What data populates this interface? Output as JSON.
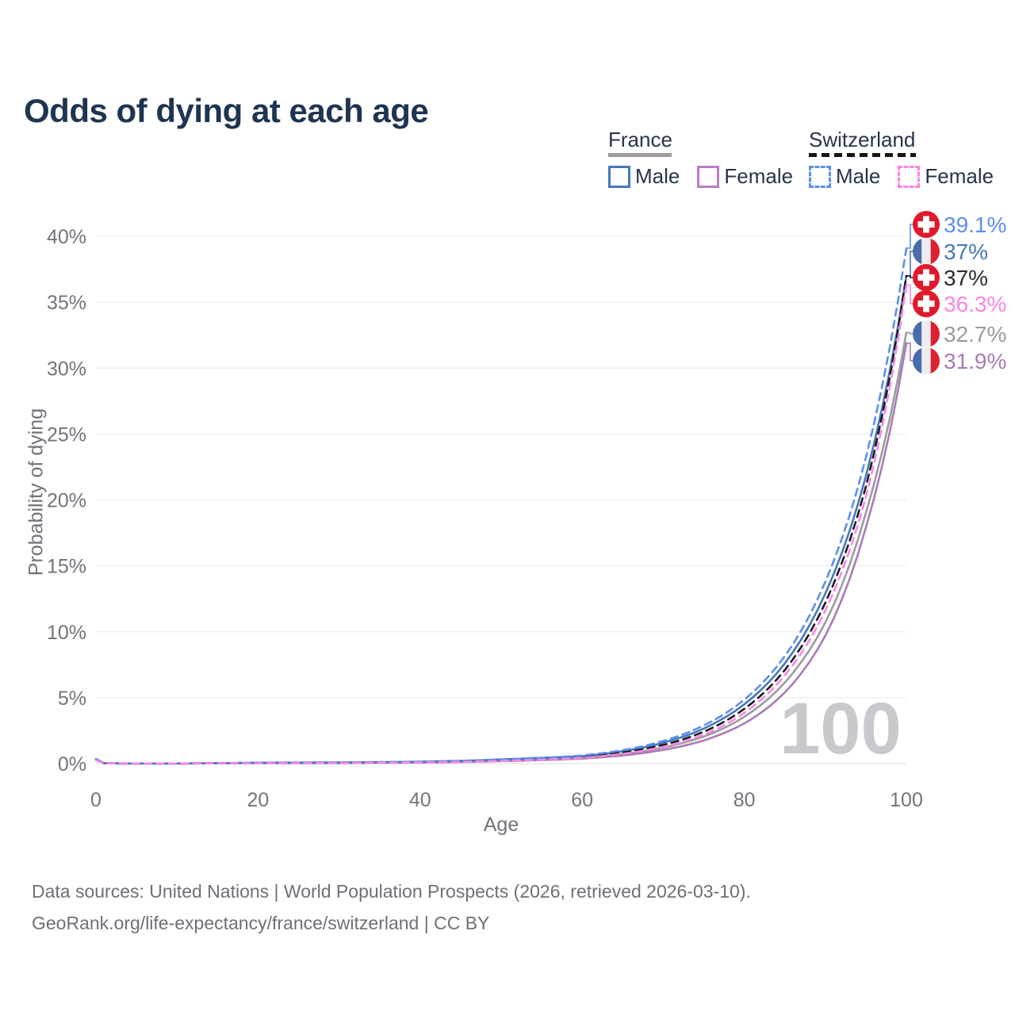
{
  "page": {
    "title": "Odds of dying at each age"
  },
  "legend": {
    "groups": [
      {
        "id": "france",
        "label": "France",
        "line_style": "solid",
        "underline_color": "#9C9CA1",
        "items": [
          {
            "id": "france-male",
            "label": "Male",
            "color": "#4677BD"
          },
          {
            "id": "france-female",
            "label": "Female",
            "color": "#BB7CC6"
          }
        ]
      },
      {
        "id": "switzerland",
        "label": "Switzerland",
        "line_style": "dashed",
        "underline_color": "#161616",
        "items": [
          {
            "id": "switzerland-male",
            "label": "Male",
            "color": "#5C8FF0"
          },
          {
            "id": "switzerland-female",
            "label": "Female",
            "color": "#FA85E6"
          }
        ]
      }
    ]
  },
  "chart_data": {
    "type": "line",
    "title": "Odds of dying at each age",
    "xlabel": "Age",
    "ylabel": "Probability of dying",
    "xlim": [
      0,
      100
    ],
    "ylim": [
      0,
      40
    ],
    "x_ticks": [
      0,
      20,
      40,
      60,
      80,
      100
    ],
    "y_ticks": [
      {
        "value": 0,
        "label": "0%"
      },
      {
        "value": 5,
        "label": "5%"
      },
      {
        "value": 10,
        "label": "10%"
      },
      {
        "value": 15,
        "label": "15%"
      },
      {
        "value": 20,
        "label": "20%"
      },
      {
        "value": 25,
        "label": "25%"
      },
      {
        "value": 30,
        "label": "30%"
      },
      {
        "value": 35,
        "label": "35%"
      },
      {
        "value": 40,
        "label": "40%"
      }
    ],
    "grid": "horizontal",
    "legend_position": "top-right",
    "watermark": "100",
    "ages": [
      0,
      1,
      5,
      10,
      15,
      20,
      25,
      30,
      35,
      40,
      45,
      50,
      55,
      60,
      65,
      70,
      75,
      80,
      85,
      90,
      95,
      100
    ],
    "series": [
      {
        "id": "switzerland-male",
        "name": "Switzerland Male",
        "country": "Switzerland",
        "sex": "male",
        "color": "#5C8FF0",
        "dash": "dashed",
        "flag": "switzerland",
        "end_label": "39.1%",
        "end_value": 39.1,
        "values": [
          0.33,
          0.02,
          0.01,
          0.01,
          0.03,
          0.06,
          0.07,
          0.08,
          0.1,
          0.14,
          0.19,
          0.29,
          0.43,
          0.62,
          1.02,
          1.72,
          2.9,
          4.85,
          8.15,
          13.8,
          23.2,
          39.1
        ]
      },
      {
        "id": "france-male",
        "name": "France Male",
        "country": "France",
        "sex": "male",
        "color": "#4677BD",
        "dash": "solid",
        "flag": "france",
        "end_label": "37%",
        "end_value": 37.0,
        "values": [
          0.36,
          0.03,
          0.01,
          0.01,
          0.04,
          0.07,
          0.08,
          0.09,
          0.11,
          0.15,
          0.21,
          0.32,
          0.44,
          0.57,
          0.94,
          1.58,
          2.66,
          4.5,
          7.6,
          12.9,
          21.8,
          37.0
        ]
      },
      {
        "id": "switzerland-total",
        "name": "Switzerland",
        "country": "Switzerland",
        "sex": "both",
        "color": "#1C1C1C",
        "dash": "dashed",
        "flag": "switzerland",
        "end_label": "37%",
        "end_value": 37.0,
        "values": [
          0.3,
          0.02,
          0.01,
          0.01,
          0.02,
          0.05,
          0.05,
          0.06,
          0.08,
          0.11,
          0.16,
          0.24,
          0.36,
          0.5,
          0.84,
          1.42,
          2.42,
          4.15,
          7.1,
          12.2,
          21.0,
          37.0
        ]
      },
      {
        "id": "switzerland-female",
        "name": "Switzerland Female",
        "country": "Switzerland",
        "sex": "female",
        "color": "#FA85E6",
        "dash": "dashed",
        "flag": "switzerland",
        "end_label": "36.3%",
        "end_value": 36.3,
        "values": [
          0.27,
          0.02,
          0.01,
          0.01,
          0.02,
          0.03,
          0.04,
          0.04,
          0.06,
          0.09,
          0.13,
          0.2,
          0.3,
          0.44,
          0.74,
          1.27,
          2.2,
          3.85,
          6.7,
          11.6,
          20.2,
          36.3
        ]
      },
      {
        "id": "france-total",
        "name": "France",
        "country": "France",
        "sex": "both",
        "color": "#9B9BA0",
        "dash": "solid",
        "flag": "france",
        "end_label": "32.7%",
        "end_value": 32.7,
        "values": [
          0.32,
          0.02,
          0.01,
          0.01,
          0.03,
          0.05,
          0.05,
          0.06,
          0.08,
          0.11,
          0.15,
          0.24,
          0.34,
          0.43,
          0.72,
          1.22,
          2.05,
          3.55,
          6.15,
          10.7,
          19.0,
          32.7
        ]
      },
      {
        "id": "france-female",
        "name": "France Female",
        "country": "France",
        "sex": "female",
        "color": "#A87BB8",
        "dash": "solid",
        "flag": "france",
        "end_label": "31.9%",
        "end_value": 31.9,
        "values": [
          0.28,
          0.02,
          0.01,
          0.01,
          0.02,
          0.03,
          0.03,
          0.04,
          0.06,
          0.08,
          0.12,
          0.19,
          0.27,
          0.38,
          0.62,
          1.04,
          1.76,
          3.05,
          5.4,
          9.7,
          17.9,
          31.9
        ]
      }
    ]
  },
  "flag_colors": {
    "swiss_red": "#E0192B",
    "swiss_cross": "#FFFFFF",
    "france_blue": "#4A6CAC",
    "france_white": "#EDEDF0",
    "france_red": "#DB2230"
  },
  "axis_colors": {
    "tick_text": "#73737B",
    "gridline": "#F0F0F3",
    "baseline": "#E7E7EB",
    "watermark": "#C8C8CD"
  },
  "footer": {
    "line1": "Data sources: United Nations | World Population Prospects (2026, retrieved 2026-03-10).",
    "line2": "GeoRank.org/life-expectancy/france/switzerland | CC BY"
  }
}
